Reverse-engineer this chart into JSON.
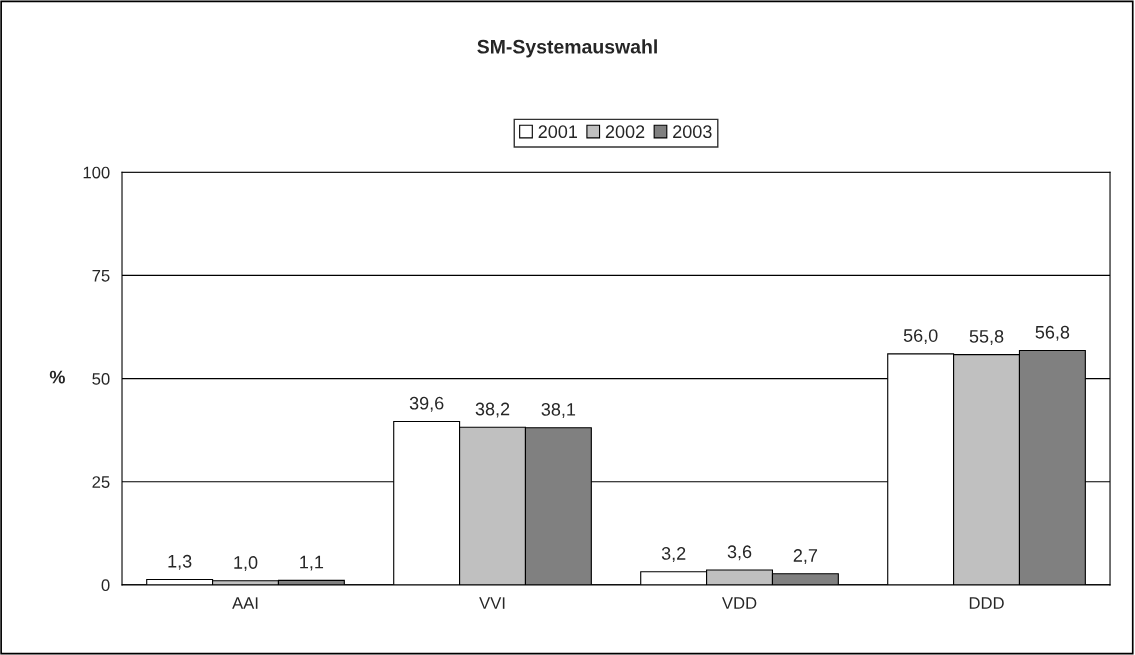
{
  "chart_data": {
    "type": "bar",
    "title": "SM-Systemauswahl",
    "ylabel": "%",
    "categories": [
      "AAI",
      "VVI",
      "VDD",
      "DDD"
    ],
    "series": [
      {
        "name": "2001",
        "color": "#ffffff",
        "values": [
          1.3,
          39.6,
          3.2,
          56.0
        ],
        "value_labels": [
          "1,3",
          "39,6",
          "3,2",
          "56,0"
        ]
      },
      {
        "name": "2002",
        "color": "#c0c0c0",
        "values": [
          1.0,
          38.2,
          3.6,
          55.8
        ],
        "value_labels": [
          "1,0",
          "38,2",
          "3,6",
          "55,8"
        ]
      },
      {
        "name": "2003",
        "color": "#808080",
        "values": [
          1.1,
          38.1,
          2.7,
          56.8
        ],
        "value_labels": [
          "1,1",
          "38,1",
          "2,7",
          "56,8"
        ]
      }
    ],
    "ylim": [
      0,
      100
    ],
    "yticks": [
      0,
      25,
      50,
      75,
      100
    ],
    "grid": "y",
    "legend": "top"
  }
}
